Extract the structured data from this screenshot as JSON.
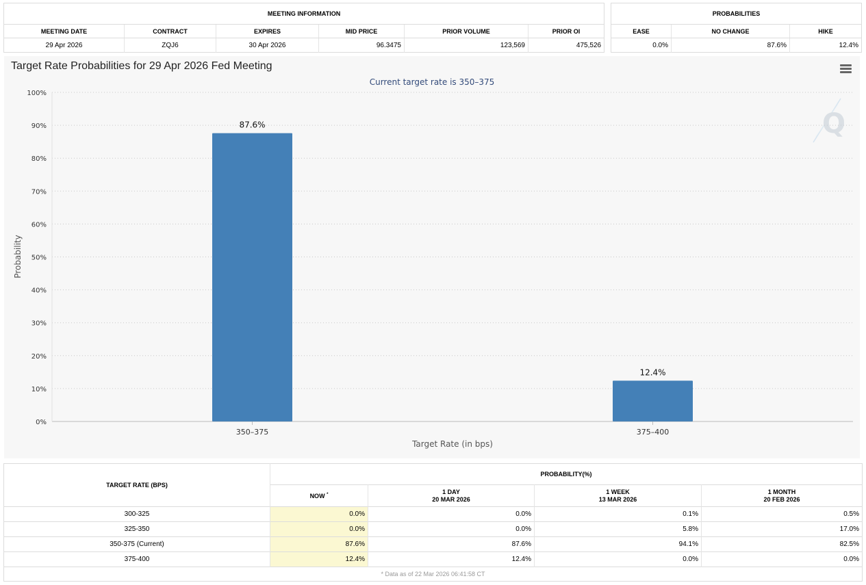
{
  "meeting_info": {
    "title": "MEETING INFORMATION",
    "columns": [
      "MEETING DATE",
      "CONTRACT",
      "EXPIRES",
      "MID PRICE",
      "PRIOR VOLUME",
      "PRIOR OI"
    ],
    "values": [
      "29 Apr 2026",
      "ZQJ6",
      "30 Apr 2026",
      "96.3475",
      "123,569",
      "475,526"
    ]
  },
  "probabilities": {
    "title": "PROBABILITIES",
    "columns": [
      "EASE",
      "NO CHANGE",
      "HIKE"
    ],
    "values": [
      "0.0%",
      "87.6%",
      "12.4%"
    ]
  },
  "chart_header": {
    "title": "Target Rate Probabilities for 29 Apr 2026 Fed Meeting",
    "menu_icon": "hamburger-menu-icon",
    "watermark": "Q"
  },
  "chart_data": {
    "type": "bar",
    "title": "Target Rate Probabilities for 29 Apr 2026 Fed Meeting",
    "subtitle": "Current target rate is 350–375",
    "categories": [
      "350–375",
      "375–400"
    ],
    "values": [
      87.6,
      12.4
    ],
    "data_labels": [
      "87.6%",
      "12.4%"
    ],
    "xlabel": "Target Rate (in bps)",
    "ylabel": "Probability",
    "ylim": [
      0,
      100
    ],
    "yticks": [
      0,
      10,
      20,
      30,
      40,
      50,
      60,
      70,
      80,
      90,
      100
    ],
    "ytick_labels": [
      "0%",
      "10%",
      "20%",
      "30%",
      "40%",
      "50%",
      "60%",
      "70%",
      "80%",
      "90%",
      "100%"
    ],
    "grid": true,
    "bar_color": "#4480b7"
  },
  "rate_table": {
    "target_rate_header": "TARGET RATE (BPS)",
    "probability_header": "PROBABILITY(%)",
    "now_label": "NOW",
    "now_mark": "*",
    "periods": [
      {
        "label": "1 DAY",
        "date": "20 MAR 2026"
      },
      {
        "label": "1 WEEK",
        "date": "13 MAR 2026"
      },
      {
        "label": "1 MONTH",
        "date": "20 FEB 2026"
      }
    ],
    "rows": [
      {
        "rate": "300-325",
        "now": "0.0%",
        "day": "0.0%",
        "week": "0.1%",
        "month": "0.5%"
      },
      {
        "rate": "325-350",
        "now": "0.0%",
        "day": "0.0%",
        "week": "5.8%",
        "month": "17.0%"
      },
      {
        "rate": "350-375 (Current)",
        "now": "87.6%",
        "day": "87.6%",
        "week": "94.1%",
        "month": "82.5%"
      },
      {
        "rate": "375-400",
        "now": "12.4%",
        "day": "12.4%",
        "week": "0.0%",
        "month": "0.0%"
      }
    ],
    "footnote": "* Data as of 22 Mar 2026 06:41:58 CT",
    "now_highlight_color": "#fbf8d2"
  }
}
